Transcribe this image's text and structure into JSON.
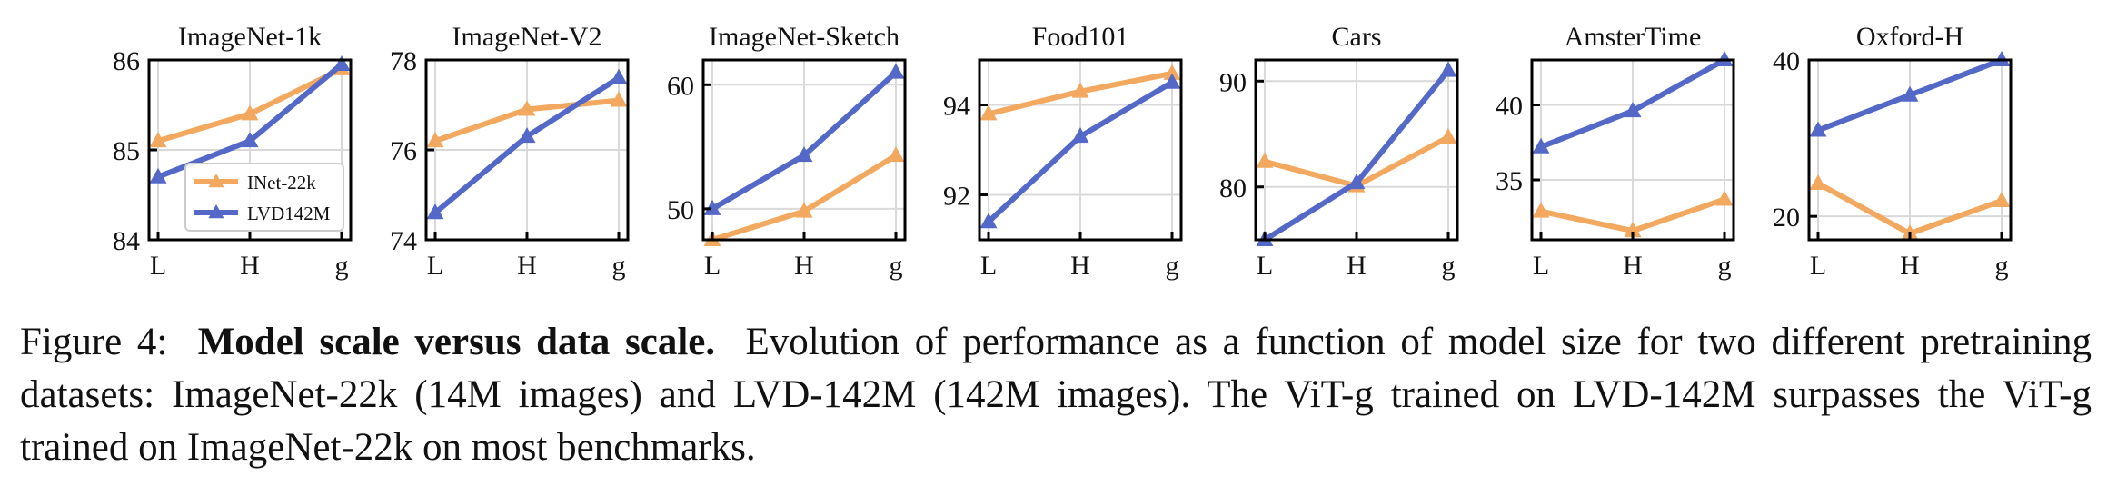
{
  "figure": {
    "caption_label": "Figure 4:",
    "caption_title": "Model scale versus data scale.",
    "caption_text": "Evolution of performance as a function of model size for two different pretraining datasets: ImageNet-22k (14M images) and LVD-142M (142M images). The ViT-g trained on LVD-142M surpasses the ViT-g trained on ImageNet-22k on most benchmarks."
  },
  "colors": {
    "inet22k": "#F2A95F",
    "lvd142m": "#5468C8",
    "grid": "#d9d9d9"
  },
  "chart_data": [
    {
      "type": "line",
      "title": "ImageNet-1k",
      "categories": [
        "L",
        "H",
        "g"
      ],
      "ylim": [
        84,
        86
      ],
      "yticks": [
        84,
        85,
        86
      ],
      "grid": true,
      "legend": {
        "placement": "lower-right",
        "entries": [
          "INet-22k",
          "LVD142M"
        ]
      },
      "series": [
        {
          "name": "INet-22k",
          "color_key": "inet22k",
          "values": [
            85.1,
            85.4,
            85.9
          ]
        },
        {
          "name": "LVD142M",
          "color_key": "lvd142m",
          "values": [
            84.7,
            85.1,
            85.95
          ]
        }
      ]
    },
    {
      "type": "line",
      "title": "ImageNet-V2",
      "categories": [
        "L",
        "H",
        "g"
      ],
      "ylim": [
        74,
        78
      ],
      "yticks": [
        74,
        76,
        78
      ],
      "grid": true,
      "series": [
        {
          "name": "INet-22k",
          "color_key": "inet22k",
          "values": [
            76.2,
            76.9,
            77.1
          ]
        },
        {
          "name": "LVD142M",
          "color_key": "lvd142m",
          "values": [
            74.6,
            76.3,
            77.6
          ]
        }
      ]
    },
    {
      "type": "line",
      "title": "ImageNet-Sketch",
      "categories": [
        "L",
        "H",
        "g"
      ],
      "ylim": [
        47.5,
        62
      ],
      "yticks": [
        50,
        60
      ],
      "grid": true,
      "series": [
        {
          "name": "INet-22k",
          "color_key": "inet22k",
          "values": [
            47.5,
            49.8,
            54.3
          ]
        },
        {
          "name": "LVD142M",
          "color_key": "lvd142m",
          "values": [
            50.0,
            54.3,
            61.0
          ]
        }
      ]
    },
    {
      "type": "line",
      "title": "Food101",
      "categories": [
        "L",
        "H",
        "g"
      ],
      "ylim": [
        91,
        95
      ],
      "yticks": [
        92,
        94
      ],
      "grid": true,
      "series": [
        {
          "name": "INet-22k",
          "color_key": "inet22k",
          "values": [
            93.8,
            94.3,
            94.7
          ]
        },
        {
          "name": "LVD142M",
          "color_key": "lvd142m",
          "values": [
            91.4,
            93.3,
            94.5
          ]
        }
      ]
    },
    {
      "type": "line",
      "title": "Cars",
      "categories": [
        "L",
        "H",
        "g"
      ],
      "ylim": [
        75,
        92
      ],
      "yticks": [
        80,
        90
      ],
      "grid": true,
      "series": [
        {
          "name": "INet-22k",
          "color_key": "inet22k",
          "values": [
            82.4,
            80.1,
            84.7
          ]
        },
        {
          "name": "LVD142M",
          "color_key": "lvd142m",
          "values": [
            75.0,
            80.4,
            91.0
          ]
        }
      ]
    },
    {
      "type": "line",
      "title": "AmsterTime",
      "categories": [
        "L",
        "H",
        "g"
      ],
      "ylim": [
        31,
        43
      ],
      "yticks": [
        35,
        40
      ],
      "grid": true,
      "series": [
        {
          "name": "INet-22k",
          "color_key": "inet22k",
          "values": [
            32.9,
            31.6,
            33.7
          ]
        },
        {
          "name": "LVD142M",
          "color_key": "lvd142m",
          "values": [
            37.2,
            39.6,
            43.0
          ]
        }
      ]
    },
    {
      "type": "line",
      "title": "Oxford-H",
      "categories": [
        "L",
        "H",
        "g"
      ],
      "ylim": [
        17,
        40
      ],
      "yticks": [
        20,
        40
      ],
      "grid": true,
      "series": [
        {
          "name": "INet-22k",
          "color_key": "inet22k",
          "values": [
            24.2,
            17.8,
            22.0
          ]
        },
        {
          "name": "LVD142M",
          "color_key": "lvd142m",
          "values": [
            31.0,
            35.5,
            40.0
          ]
        }
      ]
    }
  ]
}
